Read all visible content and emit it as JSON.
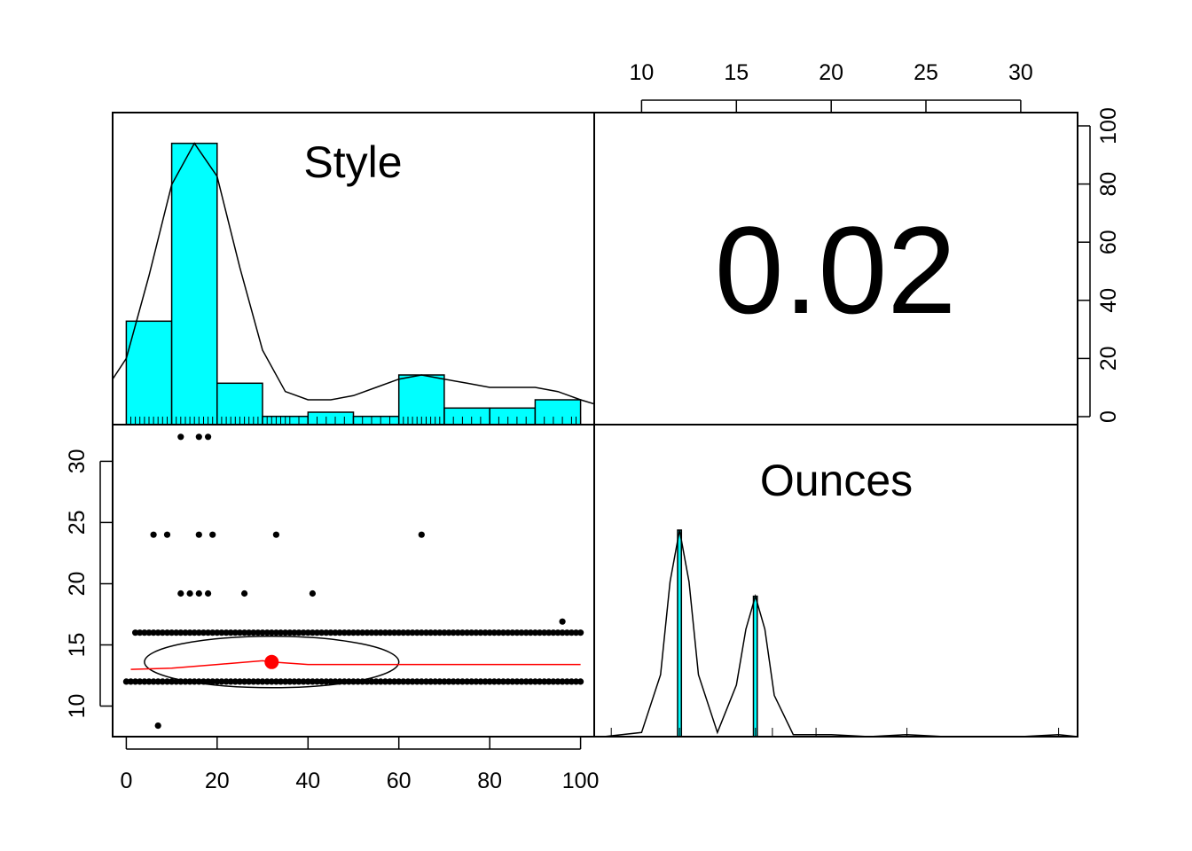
{
  "chart_data": [
    {
      "type": "bar",
      "panel": "histogram",
      "title": "Style",
      "variable": "Style",
      "bins": [
        0,
        10,
        20,
        30,
        40,
        50,
        60,
        70,
        80,
        90,
        100
      ],
      "counts": [
        25,
        68,
        10,
        2,
        3,
        2,
        12,
        4,
        4,
        6
      ],
      "density_curve": {
        "x": [
          -3,
          0,
          5,
          10,
          15,
          20,
          25,
          30,
          35,
          40,
          45,
          50,
          55,
          60,
          65,
          70,
          75,
          80,
          85,
          90,
          95,
          100,
          103
        ],
        "y": [
          11,
          16,
          36,
          58,
          68,
          60,
          38,
          18,
          8,
          6,
          6,
          7,
          9,
          11,
          12,
          11,
          10,
          9,
          9,
          9,
          8,
          6,
          5
        ]
      },
      "rug": [
        1,
        2,
        3,
        4,
        5,
        6,
        7,
        8,
        9,
        10,
        11,
        12,
        13,
        14,
        15,
        16,
        17,
        18,
        19,
        20,
        21,
        22,
        23,
        24,
        25,
        26,
        27,
        28,
        29,
        30,
        31,
        32,
        33,
        34,
        35,
        36,
        38,
        40,
        42,
        44,
        46,
        48,
        50,
        52,
        54,
        56,
        58,
        60,
        61,
        62,
        63,
        64,
        65,
        66,
        67,
        68,
        69,
        70,
        72,
        74,
        76,
        78,
        80,
        82,
        84,
        86,
        88,
        90,
        92,
        94,
        96,
        98,
        99,
        100
      ]
    },
    {
      "type": "table",
      "panel": "correlation",
      "correlation_label": "0.02"
    },
    {
      "type": "scatter",
      "panel": "scatter",
      "x_variable": "Style",
      "y_variable": "Ounces",
      "xlim": [
        -3,
        103
      ],
      "ylim": [
        7.5,
        33
      ],
      "xticks": [
        0,
        20,
        40,
        60,
        80,
        100
      ],
      "yticks": [
        10,
        15,
        20,
        25,
        30
      ],
      "outlier_points": [
        {
          "x": 12,
          "y": 32
        },
        {
          "x": 16,
          "y": 32
        },
        {
          "x": 18,
          "y": 32
        },
        {
          "x": 6,
          "y": 24
        },
        {
          "x": 9,
          "y": 24
        },
        {
          "x": 16,
          "y": 24
        },
        {
          "x": 19,
          "y": 24
        },
        {
          "x": 33,
          "y": 24
        },
        {
          "x": 65,
          "y": 24
        },
        {
          "x": 12,
          "y": 19.2
        },
        {
          "x": 14,
          "y": 19.2
        },
        {
          "x": 16,
          "y": 19.2
        },
        {
          "x": 18,
          "y": 19.2
        },
        {
          "x": 26,
          "y": 19.2
        },
        {
          "x": 41,
          "y": 19.2
        },
        {
          "x": 96,
          "y": 16.9
        },
        {
          "x": 7,
          "y": 8.4
        }
      ],
      "dense_rows": [
        {
          "y": 16,
          "x_from": 2,
          "x_to": 100
        },
        {
          "y": 12,
          "x_from": 0,
          "x_to": 100
        }
      ],
      "mean_point": {
        "x": 32,
        "y": 13.6
      },
      "ellipse": {
        "center_x": 32,
        "center_y": 13.6,
        "radius_x": 28,
        "radius_y": 2.1
      },
      "loess": {
        "x": [
          1,
          10,
          20,
          30,
          32,
          40,
          50,
          60,
          70,
          80,
          90,
          100
        ],
        "y": [
          13.0,
          13.1,
          13.4,
          13.7,
          13.6,
          13.4,
          13.4,
          13.4,
          13.4,
          13.4,
          13.4,
          13.4
        ]
      }
    },
    {
      "type": "bar",
      "panel": "histogram",
      "title": "Ounces",
      "variable": "Ounces",
      "xlim": [
        7.5,
        33
      ],
      "xticks": [
        10,
        15,
        20,
        25,
        30
      ],
      "bars": [
        {
          "x_from": 11.9,
          "x_to": 12.1,
          "height": 1.0
        },
        {
          "x_from": 15.9,
          "x_to": 16.1,
          "height": 0.68
        }
      ],
      "density_curve": {
        "x": [
          8,
          10,
          11,
          11.5,
          12,
          12.5,
          13,
          14,
          15,
          15.5,
          16,
          16.5,
          17,
          18,
          20,
          22,
          24,
          26,
          28,
          30,
          32,
          33
        ],
        "y": [
          0,
          0.02,
          0.3,
          0.75,
          1.0,
          0.75,
          0.3,
          0.02,
          0.25,
          0.52,
          0.68,
          0.52,
          0.2,
          0.01,
          0.01,
          0.0,
          0.01,
          0.0,
          0.0,
          0.0,
          0.01,
          0.0
        ]
      },
      "rug": [
        8.4,
        12,
        16,
        16.9,
        19.2,
        24,
        32
      ]
    }
  ],
  "right_axis": {
    "ticks": [
      "0",
      "20",
      "40",
      "60",
      "80",
      "100"
    ]
  }
}
